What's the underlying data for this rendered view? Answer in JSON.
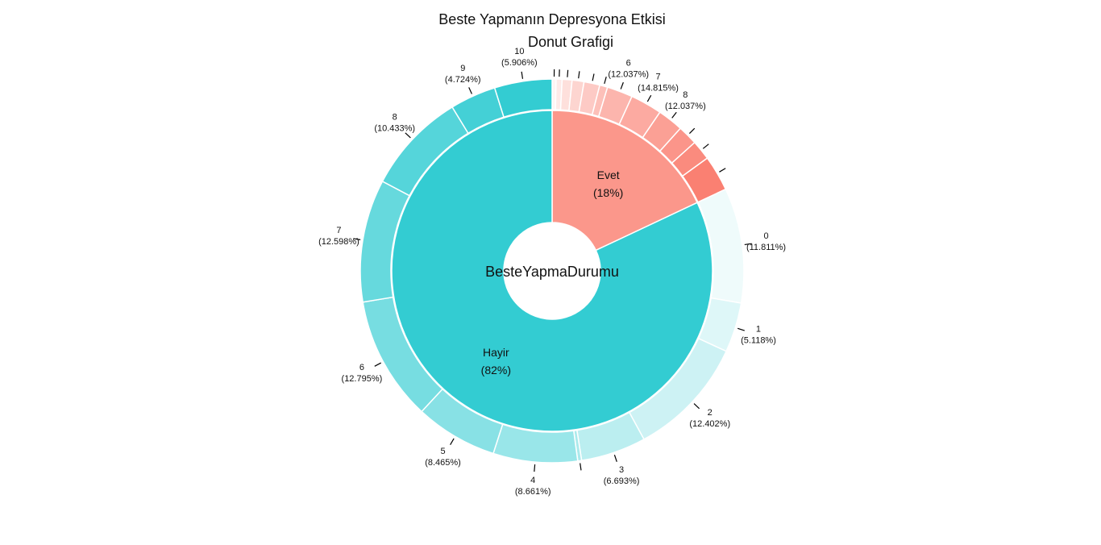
{
  "chart_data": {
    "type": "donut",
    "title": [
      "Beste Yapmanın Depresyona Etkisi",
      "Donut Grafigi"
    ],
    "center_label": "BesteYapmaDurumu",
    "colors": {
      "evet": "#FA8072",
      "hayir": "#33CCD2"
    },
    "inner": [
      {
        "label": "Evet",
        "percent": 18
      },
      {
        "label": "Hayir",
        "percent": 82
      }
    ],
    "outer_evet": [
      {
        "label": "",
        "percent": 1.852
      },
      {
        "label": "",
        "percent": 2.778
      },
      {
        "label": "",
        "percent": 4.63
      },
      {
        "label": "",
        "percent": 5.556
      },
      {
        "label": "",
        "percent": 7.407
      },
      {
        "label": "",
        "percent": 3.704
      },
      {
        "label": "6",
        "percent": 12.037
      },
      {
        "label": "7",
        "percent": 14.815
      },
      {
        "label": "8",
        "percent": 12.037
      },
      {
        "label": "",
        "percent": 9.259
      },
      {
        "label": "",
        "percent": 9.259
      },
      {
        "label": "",
        "percent": 16.666
      }
    ],
    "outer_hayir": [
      {
        "label": "0",
        "percent": 11.811
      },
      {
        "label": "1",
        "percent": 5.118
      },
      {
        "label": "2",
        "percent": 12.402
      },
      {
        "label": "3",
        "percent": 6.693
      },
      {
        "label": "",
        "percent": 0.394
      },
      {
        "label": "4",
        "percent": 8.661
      },
      {
        "label": "5",
        "percent": 8.465
      },
      {
        "label": "6",
        "percent": 12.795
      },
      {
        "label": "7",
        "percent": 12.598
      },
      {
        "label": "8",
        "percent": 10.433
      },
      {
        "label": "9",
        "percent": 4.724
      },
      {
        "label": "10",
        "percent": 5.906
      }
    ]
  }
}
